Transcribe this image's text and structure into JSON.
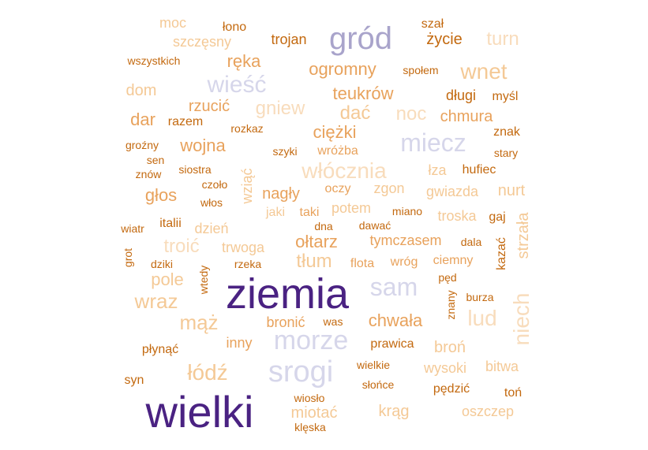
{
  "palette": {
    "deep_purple": "#4a2282",
    "mid_purple": "#a9a4cb",
    "light_purple": "#d6d6ea",
    "dark_orange": "#c3690f",
    "mid_orange": "#e8a25c",
    "light_orange": "#f4c996",
    "pale_orange": "#f8dcbc"
  },
  "words": [
    {
      "id": "ziemia",
      "text": "ziemia"
    },
    {
      "id": "wielki",
      "text": "wielki"
    },
    {
      "id": "grod",
      "text": "gród"
    },
    {
      "id": "srogi",
      "text": "srogi"
    },
    {
      "id": "morze",
      "text": "morze"
    },
    {
      "id": "miecz",
      "text": "miecz"
    },
    {
      "id": "sam",
      "text": "sam"
    },
    {
      "id": "wiesc",
      "text": "wieść"
    },
    {
      "id": "wlocznia",
      "text": "włócznia"
    },
    {
      "id": "niech",
      "text": "niech"
    },
    {
      "id": "lud",
      "text": "lud"
    },
    {
      "id": "wnet",
      "text": "wnet"
    },
    {
      "id": "turn",
      "text": "turn"
    },
    {
      "id": "maz",
      "text": "mąż"
    },
    {
      "id": "lodz",
      "text": "łódź"
    },
    {
      "id": "wraz",
      "text": "wraz"
    },
    {
      "id": "chwala",
      "text": "chwała"
    },
    {
      "id": "gniew",
      "text": "gniew"
    },
    {
      "id": "ogromny",
      "text": "ogromny"
    },
    {
      "id": "teukrow",
      "text": "teukrów"
    },
    {
      "id": "reka",
      "text": "ręka"
    },
    {
      "id": "oltarz",
      "text": "ołtarz"
    },
    {
      "id": "tlum",
      "text": "tłum"
    },
    {
      "id": "noc",
      "text": "noc"
    },
    {
      "id": "dac",
      "text": "dać"
    },
    {
      "id": "ciezki",
      "text": "ciężki"
    },
    {
      "id": "wojna",
      "text": "wojna"
    },
    {
      "id": "dar",
      "text": "dar"
    },
    {
      "id": "glos",
      "text": "głos"
    },
    {
      "id": "troic",
      "text": "troić"
    },
    {
      "id": "pole",
      "text": "pole"
    },
    {
      "id": "chmura",
      "text": "chmura"
    },
    {
      "id": "nagly",
      "text": "nagły"
    },
    {
      "id": "szczesny",
      "text": "szczęsny"
    },
    {
      "id": "moc",
      "text": "moc"
    },
    {
      "id": "dom",
      "text": "dom"
    },
    {
      "id": "rzucic",
      "text": "rzucić"
    },
    {
      "id": "miotac",
      "text": "miotać"
    },
    {
      "id": "krag",
      "text": "krąg"
    },
    {
      "id": "oszczep",
      "text": "oszczep"
    },
    {
      "id": "wysoki",
      "text": "wysoki"
    },
    {
      "id": "bitwa",
      "text": "bitwa"
    },
    {
      "id": "bron",
      "text": "broń"
    },
    {
      "id": "gwiazda",
      "text": "gwiazda"
    },
    {
      "id": "nurt",
      "text": "nurt"
    },
    {
      "id": "strzala",
      "text": "strzała"
    },
    {
      "id": "troska",
      "text": "troska"
    },
    {
      "id": "zycie",
      "text": "życie"
    },
    {
      "id": "trojan",
      "text": "trojan"
    },
    {
      "id": "dlugi",
      "text": "długi"
    },
    {
      "id": "wziac",
      "text": "wziąć"
    },
    {
      "id": "potem",
      "text": "potem"
    },
    {
      "id": "zgon",
      "text": "zgon"
    },
    {
      "id": "dzien",
      "text": "dzień"
    },
    {
      "id": "trwoga",
      "text": "trwoga"
    },
    {
      "id": "tymczasem",
      "text": "tymczasem"
    },
    {
      "id": "bronic",
      "text": "bronić"
    },
    {
      "id": "inny",
      "text": "inny"
    },
    {
      "id": "prawica",
      "text": "prawica"
    },
    {
      "id": "wrozba",
      "text": "wróżba"
    },
    {
      "id": "lza",
      "text": "łza"
    },
    {
      "id": "oczy",
      "text": "oczy"
    },
    {
      "id": "jaki",
      "text": "jaki"
    },
    {
      "id": "taki",
      "text": "taki"
    },
    {
      "id": "flota",
      "text": "flota"
    },
    {
      "id": "wrog",
      "text": "wróg"
    },
    {
      "id": "ciemny",
      "text": "ciemny"
    },
    {
      "id": "plynac",
      "text": "płynąć"
    },
    {
      "id": "syn",
      "text": "syn"
    },
    {
      "id": "pedzic",
      "text": "pędzić"
    },
    {
      "id": "ton",
      "text": "toń"
    },
    {
      "id": "razem",
      "text": "razem"
    },
    {
      "id": "italii",
      "text": "italii"
    },
    {
      "id": "hufiec",
      "text": "hufiec"
    },
    {
      "id": "gaj",
      "text": "gaj"
    },
    {
      "id": "kazac",
      "text": "kazać"
    },
    {
      "id": "znak",
      "text": "znak"
    },
    {
      "id": "mysl",
      "text": "myśl"
    },
    {
      "id": "szal",
      "text": "szał"
    },
    {
      "id": "lono",
      "text": "łono"
    },
    {
      "id": "wszystkich",
      "text": "wszystkich"
    },
    {
      "id": "spolem",
      "text": "społem"
    },
    {
      "id": "rozkaz",
      "text": "rozkaz"
    },
    {
      "id": "grozny",
      "text": "groźny"
    },
    {
      "id": "sen",
      "text": "sen"
    },
    {
      "id": "znow",
      "text": "znów"
    },
    {
      "id": "siostra",
      "text": "siostra"
    },
    {
      "id": "czolo",
      "text": "czoło"
    },
    {
      "id": "wlos",
      "text": "włos"
    },
    {
      "id": "szyki",
      "text": "szyki"
    },
    {
      "id": "stary",
      "text": "stary"
    },
    {
      "id": "dna",
      "text": "dna"
    },
    {
      "id": "dawac",
      "text": "dawać"
    },
    {
      "id": "miano",
      "text": "miano"
    },
    {
      "id": "wiatr",
      "text": "wiatr"
    },
    {
      "id": "grot",
      "text": "grot"
    },
    {
      "id": "dziki",
      "text": "dziki"
    },
    {
      "id": "wtedy",
      "text": "wtedy"
    },
    {
      "id": "rzeka",
      "text": "rzeka"
    },
    {
      "id": "dala",
      "text": "dala"
    },
    {
      "id": "ped",
      "text": "pęd"
    },
    {
      "id": "znany",
      "text": "znany"
    },
    {
      "id": "burza",
      "text": "burza"
    },
    {
      "id": "was",
      "text": "was"
    },
    {
      "id": "wielkie",
      "text": "wielkie"
    },
    {
      "id": "slonce",
      "text": "słońce"
    },
    {
      "id": "wioslo",
      "text": "wiosło"
    },
    {
      "id": "kleska",
      "text": "klęska"
    }
  ]
}
